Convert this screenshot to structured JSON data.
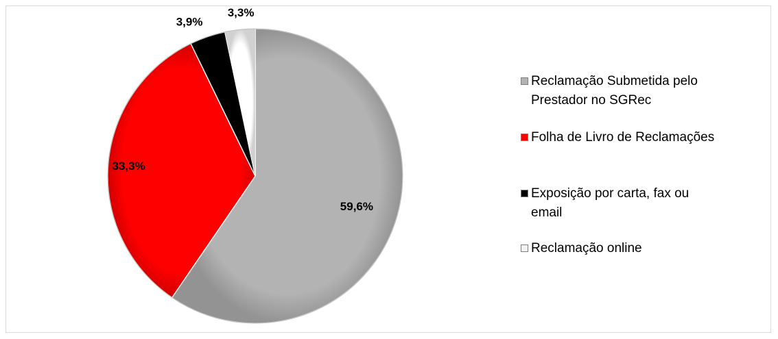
{
  "chart_data": {
    "type": "pie",
    "title": "",
    "legend_position": "right",
    "slices": [
      {
        "label": "Reclamação Submetida pelo Prestador no SGRec",
        "value": 59.6,
        "display": "59,6%",
        "color": "#b3b3b3"
      },
      {
        "label": "Folha de Livro de Reclamações",
        "value": 33.3,
        "display": "33,3%",
        "color": "#ff0000"
      },
      {
        "label": "Exposição por carta, fax ou email",
        "value": 3.9,
        "display": "3,9%",
        "color": "#000000"
      },
      {
        "label": "Reclamação online",
        "value": 3.3,
        "display": "3,3%",
        "color": "#ffffff"
      }
    ]
  }
}
